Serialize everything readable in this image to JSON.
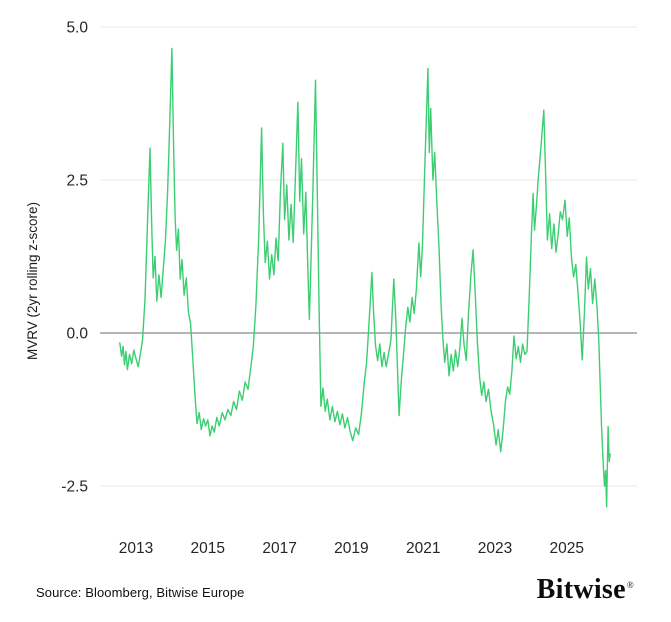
{
  "page": {
    "background": "#ffffff"
  },
  "footer": {
    "source": "Source: Bloomberg, Bitwise Europe",
    "brand": "Bitwise",
    "brand_mark": "®"
  },
  "chart_data": {
    "type": "line",
    "title": "",
    "xlabel": "",
    "ylabel": "MVRV (2yr rolling z-score)",
    "x_ticks": [
      2013,
      2015,
      2017,
      2019,
      2021,
      2023,
      2025
    ],
    "y_ticks": [
      5.0,
      2.5,
      0.0,
      -2.5
    ],
    "y_tick_labels": [
      "5.0",
      "2.5",
      "0.0",
      "-2.5"
    ],
    "xlim": [
      2012.0,
      2026.95
    ],
    "ylim": [
      -3.0,
      5.2
    ],
    "grid": "horizontal",
    "legend": "none",
    "line_color": "#3bce72",
    "grid_color": "#e9e9e9",
    "zero_line_color": "#8a8a8a",
    "series": [
      {
        "name": "MVRV 2yr rolling z-score",
        "points": [
          [
            2012.55,
            -0.16
          ],
          [
            2012.6,
            -0.38
          ],
          [
            2012.64,
            -0.22
          ],
          [
            2012.68,
            -0.52
          ],
          [
            2012.72,
            -0.3
          ],
          [
            2012.76,
            -0.6
          ],
          [
            2012.82,
            -0.35
          ],
          [
            2012.88,
            -0.5
          ],
          [
            2012.94,
            -0.28
          ],
          [
            2013.0,
            -0.42
          ],
          [
            2013.06,
            -0.55
          ],
          [
            2013.12,
            -0.35
          ],
          [
            2013.18,
            -0.12
          ],
          [
            2013.25,
            0.55
          ],
          [
            2013.32,
            1.8
          ],
          [
            2013.39,
            3.02
          ],
          [
            2013.44,
            1.7
          ],
          [
            2013.48,
            0.9
          ],
          [
            2013.53,
            1.25
          ],
          [
            2013.58,
            0.52
          ],
          [
            2013.64,
            0.95
          ],
          [
            2013.7,
            0.58
          ],
          [
            2013.76,
            1.05
          ],
          [
            2013.82,
            1.5
          ],
          [
            2013.88,
            2.3
          ],
          [
            2013.94,
            3.4
          ],
          [
            2014.0,
            4.65
          ],
          [
            2014.05,
            2.95
          ],
          [
            2014.09,
            1.9
          ],
          [
            2014.13,
            1.35
          ],
          [
            2014.18,
            1.7
          ],
          [
            2014.23,
            0.88
          ],
          [
            2014.28,
            1.2
          ],
          [
            2014.34,
            0.62
          ],
          [
            2014.4,
            0.9
          ],
          [
            2014.46,
            0.35
          ],
          [
            2014.52,
            0.15
          ],
          [
            2014.58,
            -0.4
          ],
          [
            2014.64,
            -1.0
          ],
          [
            2014.7,
            -1.48
          ],
          [
            2014.76,
            -1.3
          ],
          [
            2014.82,
            -1.58
          ],
          [
            2014.88,
            -1.4
          ],
          [
            2014.94,
            -1.52
          ],
          [
            2015.0,
            -1.42
          ],
          [
            2015.06,
            -1.68
          ],
          [
            2015.12,
            -1.52
          ],
          [
            2015.18,
            -1.62
          ],
          [
            2015.25,
            -1.38
          ],
          [
            2015.32,
            -1.52
          ],
          [
            2015.4,
            -1.3
          ],
          [
            2015.48,
            -1.42
          ],
          [
            2015.56,
            -1.25
          ],
          [
            2015.64,
            -1.35
          ],
          [
            2015.72,
            -1.12
          ],
          [
            2015.8,
            -1.25
          ],
          [
            2015.88,
            -0.95
          ],
          [
            2015.96,
            -1.1
          ],
          [
            2016.04,
            -0.8
          ],
          [
            2016.12,
            -0.92
          ],
          [
            2016.2,
            -0.55
          ],
          [
            2016.27,
            -0.2
          ],
          [
            2016.34,
            0.45
          ],
          [
            2016.42,
            1.6
          ],
          [
            2016.5,
            3.35
          ],
          [
            2016.55,
            1.95
          ],
          [
            2016.6,
            1.15
          ],
          [
            2016.66,
            1.5
          ],
          [
            2016.72,
            0.88
          ],
          [
            2016.78,
            1.28
          ],
          [
            2016.84,
            0.95
          ],
          [
            2016.9,
            1.55
          ],
          [
            2016.96,
            1.18
          ],
          [
            2017.02,
            2.25
          ],
          [
            2017.09,
            3.1
          ],
          [
            2017.14,
            1.85
          ],
          [
            2017.2,
            2.42
          ],
          [
            2017.26,
            1.52
          ],
          [
            2017.32,
            2.1
          ],
          [
            2017.38,
            1.48
          ],
          [
            2017.44,
            2.55
          ],
          [
            2017.51,
            3.77
          ],
          [
            2017.56,
            2.15
          ],
          [
            2017.61,
            2.85
          ],
          [
            2017.67,
            1.62
          ],
          [
            2017.73,
            2.3
          ],
          [
            2017.79,
            0.95
          ],
          [
            2017.83,
            0.22
          ],
          [
            2017.88,
            1.3
          ],
          [
            2017.93,
            2.4
          ],
          [
            2018.0,
            4.13
          ],
          [
            2018.05,
            2.3
          ],
          [
            2018.1,
            0.4
          ],
          [
            2018.15,
            -1.2
          ],
          [
            2018.21,
            -0.9
          ],
          [
            2018.27,
            -1.28
          ],
          [
            2018.33,
            -1.08
          ],
          [
            2018.4,
            -1.42
          ],
          [
            2018.47,
            -1.2
          ],
          [
            2018.54,
            -1.45
          ],
          [
            2018.61,
            -1.28
          ],
          [
            2018.68,
            -1.5
          ],
          [
            2018.75,
            -1.32
          ],
          [
            2018.82,
            -1.55
          ],
          [
            2018.89,
            -1.38
          ],
          [
            2018.96,
            -1.6
          ],
          [
            2019.04,
            -1.76
          ],
          [
            2019.12,
            -1.55
          ],
          [
            2019.2,
            -1.66
          ],
          [
            2019.28,
            -1.3
          ],
          [
            2019.35,
            -0.85
          ],
          [
            2019.42,
            -0.5
          ],
          [
            2019.49,
            0.15
          ],
          [
            2019.57,
            0.99
          ],
          [
            2019.62,
            0.3
          ],
          [
            2019.67,
            -0.2
          ],
          [
            2019.73,
            -0.45
          ],
          [
            2019.79,
            -0.18
          ],
          [
            2019.85,
            -0.55
          ],
          [
            2019.91,
            -0.32
          ],
          [
            2019.97,
            -0.55
          ],
          [
            2020.04,
            -0.32
          ],
          [
            2020.1,
            -0.12
          ],
          [
            2020.18,
            0.88
          ],
          [
            2020.24,
            0.2
          ],
          [
            2020.29,
            -0.7
          ],
          [
            2020.33,
            -1.35
          ],
          [
            2020.39,
            -0.78
          ],
          [
            2020.45,
            -0.35
          ],
          [
            2020.51,
            0.08
          ],
          [
            2020.57,
            0.42
          ],
          [
            2020.63,
            0.18
          ],
          [
            2020.69,
            0.58
          ],
          [
            2020.75,
            0.32
          ],
          [
            2020.81,
            0.72
          ],
          [
            2020.88,
            1.47
          ],
          [
            2020.93,
            0.92
          ],
          [
            2020.98,
            1.45
          ],
          [
            2021.04,
            2.6
          ],
          [
            2021.13,
            4.32
          ],
          [
            2021.17,
            2.95
          ],
          [
            2021.21,
            3.67
          ],
          [
            2021.27,
            2.5
          ],
          [
            2021.32,
            2.95
          ],
          [
            2021.38,
            2.15
          ],
          [
            2021.44,
            1.4
          ],
          [
            2021.5,
            0.45
          ],
          [
            2021.55,
            -0.1
          ],
          [
            2021.6,
            -0.48
          ],
          [
            2021.66,
            -0.18
          ],
          [
            2021.72,
            -0.7
          ],
          [
            2021.78,
            -0.35
          ],
          [
            2021.84,
            -0.62
          ],
          [
            2021.9,
            -0.28
          ],
          [
            2021.96,
            -0.55
          ],
          [
            2022.02,
            -0.25
          ],
          [
            2022.08,
            0.24
          ],
          [
            2022.14,
            -0.2
          ],
          [
            2022.2,
            -0.45
          ],
          [
            2022.26,
            0.3
          ],
          [
            2022.33,
            0.95
          ],
          [
            2022.39,
            1.36
          ],
          [
            2022.45,
            0.62
          ],
          [
            2022.51,
            -0.15
          ],
          [
            2022.57,
            -0.72
          ],
          [
            2022.63,
            -1.02
          ],
          [
            2022.69,
            -0.8
          ],
          [
            2022.75,
            -1.12
          ],
          [
            2022.82,
            -0.92
          ],
          [
            2022.89,
            -1.28
          ],
          [
            2022.96,
            -1.5
          ],
          [
            2023.03,
            -1.83
          ],
          [
            2023.09,
            -1.58
          ],
          [
            2023.16,
            -1.94
          ],
          [
            2023.23,
            -1.55
          ],
          [
            2023.29,
            -1.12
          ],
          [
            2023.35,
            -0.88
          ],
          [
            2023.41,
            -1.0
          ],
          [
            2023.47,
            -0.62
          ],
          [
            2023.53,
            -0.05
          ],
          [
            2023.59,
            -0.42
          ],
          [
            2023.65,
            -0.22
          ],
          [
            2023.71,
            -0.48
          ],
          [
            2023.77,
            -0.18
          ],
          [
            2023.83,
            -0.35
          ],
          [
            2023.89,
            -0.3
          ],
          [
            2023.95,
            0.55
          ],
          [
            2024.01,
            1.55
          ],
          [
            2024.06,
            2.28
          ],
          [
            2024.1,
            1.68
          ],
          [
            2024.15,
            2.05
          ],
          [
            2024.21,
            2.55
          ],
          [
            2024.28,
            3.05
          ],
          [
            2024.36,
            3.64
          ],
          [
            2024.41,
            2.6
          ],
          [
            2024.46,
            1.52
          ],
          [
            2024.52,
            1.95
          ],
          [
            2024.58,
            1.38
          ],
          [
            2024.64,
            1.78
          ],
          [
            2024.7,
            1.32
          ],
          [
            2024.76,
            1.62
          ],
          [
            2024.82,
            1.98
          ],
          [
            2024.88,
            1.85
          ],
          [
            2024.95,
            2.17
          ],
          [
            2025.01,
            1.58
          ],
          [
            2025.07,
            1.88
          ],
          [
            2025.13,
            1.22
          ],
          [
            2025.19,
            0.92
          ],
          [
            2025.25,
            1.12
          ],
          [
            2025.31,
            0.68
          ],
          [
            2025.37,
            0.18
          ],
          [
            2025.43,
            -0.44
          ],
          [
            2025.49,
            0.32
          ],
          [
            2025.55,
            1.24
          ],
          [
            2025.6,
            0.72
          ],
          [
            2025.66,
            1.05
          ],
          [
            2025.72,
            0.48
          ],
          [
            2025.78,
            0.88
          ],
          [
            2025.84,
            0.42
          ],
          [
            2025.89,
            -0.12
          ],
          [
            2025.93,
            -0.85
          ],
          [
            2025.97,
            -1.55
          ],
          [
            2026.01,
            -2.1
          ],
          [
            2026.05,
            -2.5
          ],
          [
            2026.08,
            -2.25
          ],
          [
            2026.11,
            -2.84
          ],
          [
            2026.15,
            -1.53
          ],
          [
            2026.18,
            -2.1
          ],
          [
            2026.21,
            -1.98
          ]
        ]
      }
    ]
  }
}
